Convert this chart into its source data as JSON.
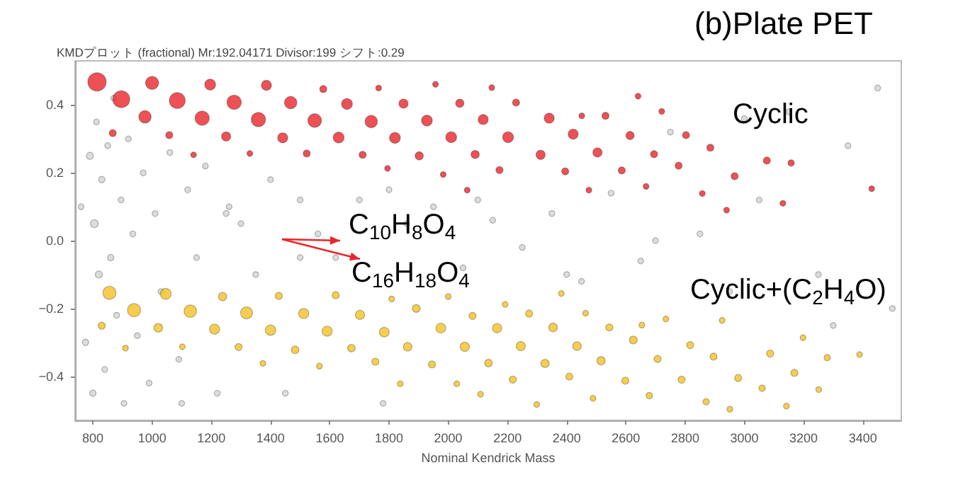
{
  "chart_data": {
    "type": "bubble",
    "title": "(b)Plate PET",
    "subtitle": "KMDプロット (fractional) Mr:192.04171 Divisor:199 シフト:0.29",
    "xlabel": "Nominal Kendrick Mass",
    "annotations": [
      "C$_{10}$H$_{8}$O$_{4}$",
      "C$_{16}$H$_{18}$O$_{4}$"
    ],
    "xlim": [
      740,
      3530
    ],
    "ylim": [
      -0.53,
      0.53
    ],
    "xticks": [
      800,
      1000,
      1200,
      1400,
      1600,
      1800,
      2000,
      2200,
      2400,
      2600,
      2800,
      3000,
      3200,
      3400
    ],
    "yticks": [
      {
        "value": -0.4,
        "label": "−0.4"
      },
      {
        "value": -0.2,
        "label": "−0.2"
      },
      {
        "value": 0,
        "label": "0.0"
      },
      {
        "value": 0.2,
        "label": "0.2"
      },
      {
        "value": 0.4,
        "label": "0.4"
      }
    ],
    "grid": false,
    "legend": false,
    "series": [
      {
        "color": "#d4d4d4",
        "x": [
          760,
          775,
          790,
          800,
          805,
          812,
          820,
          830,
          840,
          850,
          860,
          870,
          880,
          895,
          905,
          920,
          935,
          950,
          970,
          990,
          1010,
          1030,
          1060,
          1090,
          1120,
          1150,
          1180,
          1220,
          1260,
          1300,
          1350,
          1400,
          1450,
          1500,
          1560,
          1620,
          1700,
          1780,
          1860,
          1950,
          2050,
          2150,
          2250,
          2350,
          2450,
          2550,
          2650,
          2750,
          2850,
          2950,
          3050,
          3150,
          3250,
          3350,
          3450,
          3500,
          1100,
          1250,
          1500,
          1800,
          2100,
          2400,
          2700,
          3000,
          3300
        ],
        "values": [
          0.1,
          -0.3,
          0.25,
          -0.45,
          0.05,
          0.35,
          -0.1,
          0.18,
          -0.38,
          0.28,
          -0.05,
          0.42,
          -0.22,
          0.12,
          -0.48,
          0.3,
          0.02,
          -0.28,
          0.2,
          -0.42,
          0.08,
          -0.15,
          0.26,
          -0.35,
          0.15,
          -0.05,
          0.22,
          -0.45,
          0.1,
          0.05,
          -0.1,
          0.18,
          -0.45,
          0.12,
          0.02,
          -0.05,
          0.12,
          -0.48,
          0.05,
          0.1,
          -0.08,
          0.06,
          -0.02,
          0.08,
          -0.12,
          0.14,
          -0.06,
          0.32,
          0.02,
          -0.15,
          0.12,
          0.38,
          -0.1,
          0.28,
          0.45,
          -0.2,
          -0.48,
          0.08,
          -0.05,
          0.15,
          0.12,
          -0.1,
          0.0,
          0.36,
          -0.25
        ],
        "sizes": [
          0.1,
          0.12,
          0.15,
          0.12,
          0.18,
          0.1,
          0.15,
          0.12,
          0.1,
          0.1,
          0.12,
          0.1,
          0.1,
          0.1,
          0.1,
          0.1,
          0.1,
          0.1,
          0.1,
          0.1,
          0.1,
          0.1,
          0.1,
          0.1,
          0.1,
          0.1,
          0.1,
          0.1,
          0.1,
          0.1,
          0.1,
          0.1,
          0.1,
          0.1,
          0.1,
          0.1,
          0.1,
          0.1,
          0.1,
          0.1,
          0.1,
          0.1,
          0.1,
          0.1,
          0.1,
          0.1,
          0.1,
          0.1,
          0.1,
          0.1,
          0.1,
          0.1,
          0.1,
          0.1,
          0.1,
          0.1,
          0.1,
          0.1,
          0.1,
          0.1,
          0.1,
          0.1,
          0.1,
          0.1,
          0.1
        ]
      },
      {
        "name": "Cyclic",
        "color": "#e8262a",
        "x": [
          814,
          867,
          896,
          976,
          1000,
          1058,
          1085,
          1140,
          1169,
          1196,
          1250,
          1277,
          1330,
          1359,
          1386,
          1441,
          1468,
          1522,
          1549,
          1578,
          1630,
          1658,
          1711,
          1740,
          1765,
          1795,
          1820,
          1849,
          1902,
          1928,
          1957,
          1983,
          2010,
          2039,
          2064,
          2091,
          2118,
          2147,
          2173,
          2202,
          2229,
          2312,
          2341,
          2395,
          2422,
          2451,
          2475,
          2504,
          2531,
          2586,
          2614,
          2641,
          2668,
          2695,
          2721,
          2778,
          2803,
          2858,
          2885,
          2940,
          2967,
          3076,
          3130,
          3158,
          3430
        ],
        "values": [
          0.468,
          0.317,
          0.417,
          0.365,
          0.465,
          0.311,
          0.413,
          0.253,
          0.361,
          0.46,
          0.307,
          0.408,
          0.257,
          0.357,
          0.458,
          0.303,
          0.407,
          0.257,
          0.354,
          0.447,
          0.304,
          0.403,
          0.253,
          0.351,
          0.45,
          0.213,
          0.303,
          0.404,
          0.25,
          0.354,
          0.461,
          0.195,
          0.305,
          0.405,
          0.149,
          0.254,
          0.357,
          0.451,
          0.208,
          0.305,
          0.407,
          0.253,
          0.361,
          0.204,
          0.314,
          0.368,
          0.149,
          0.26,
          0.368,
          0.207,
          0.31,
          0.426,
          0.16,
          0.255,
          0.381,
          0.221,
          0.311,
          0.139,
          0.274,
          0.09,
          0.19,
          0.236,
          0.11,
          0.229,
          0.153
        ],
        "sizes": [
          1,
          0.15,
          0.85,
          0.45,
          0.5,
          0.15,
          0.75,
          0.1,
          0.6,
          0.35,
          0.25,
          0.6,
          0.1,
          0.6,
          0.3,
          0.3,
          0.45,
          0.15,
          0.55,
          0.15,
          0.35,
          0.35,
          0.15,
          0.45,
          0.1,
          0.1,
          0.35,
          0.25,
          0.2,
          0.35,
          0.1,
          0.1,
          0.35,
          0.2,
          0.1,
          0.2,
          0.3,
          0.1,
          0.15,
          0.35,
          0.15,
          0.25,
          0.3,
          0.15,
          0.3,
          0.1,
          0.1,
          0.25,
          0.15,
          0.15,
          0.2,
          0.1,
          0.1,
          0.15,
          0.1,
          0.15,
          0.15,
          0.1,
          0.15,
          0.1,
          0.15,
          0.15,
          0.1,
          0.12,
          0.1
        ]
      },
      {
        "name": "Cyclic+(C$_{2}$H$_{4}$O)",
        "color": "#f5c021",
        "x": [
          830,
          856,
          910,
          939,
          1021,
          1046,
          1102,
          1129,
          1211,
          1238,
          1292,
          1319,
          1374,
          1400,
          1428,
          1483,
          1512,
          1565,
          1591,
          1620,
          1673,
          1702,
          1754,
          1784,
          1809,
          1838,
          1863,
          1892,
          1945,
          1975,
          2000,
          2029,
          2056,
          2082,
          2109,
          2136,
          2165,
          2192,
          2218,
          2245,
          2273,
          2299,
          2327,
          2354,
          2382,
          2409,
          2435,
          2464,
          2489,
          2516,
          2544,
          2598,
          2625,
          2654,
          2679,
          2707,
          2735,
          2788,
          2817,
          2871,
          2896,
          2925,
          2951,
          2979,
          3060,
          3087,
          3142,
          3169,
          3198,
          3251,
          3280,
          3389
        ],
        "values": [
          -0.251,
          -0.154,
          -0.317,
          -0.205,
          -0.257,
          -0.157,
          -0.313,
          -0.208,
          -0.261,
          -0.165,
          -0.314,
          -0.213,
          -0.362,
          -0.264,
          -0.163,
          -0.322,
          -0.215,
          -0.37,
          -0.267,
          -0.161,
          -0.317,
          -0.219,
          -0.357,
          -0.27,
          -0.172,
          -0.422,
          -0.313,
          -0.2,
          -0.365,
          -0.258,
          -0.165,
          -0.422,
          -0.313,
          -0.222,
          -0.453,
          -0.361,
          -0.258,
          -0.188,
          -0.41,
          -0.311,
          -0.215,
          -0.483,
          -0.362,
          -0.256,
          -0.156,
          -0.401,
          -0.311,
          -0.214,
          -0.465,
          -0.354,
          -0.256,
          -0.413,
          -0.293,
          -0.249,
          -0.457,
          -0.349,
          -0.231,
          -0.41,
          -0.308,
          -0.475,
          -0.342,
          -0.235,
          -0.497,
          -0.405,
          -0.435,
          -0.333,
          -0.488,
          -0.39,
          -0.286,
          -0.439,
          -0.345,
          -0.336
        ],
        "sizes": [
          0.15,
          0.5,
          0.1,
          0.5,
          0.22,
          0.35,
          0.1,
          0.45,
          0.3,
          0.2,
          0.15,
          0.42,
          0.1,
          0.32,
          0.15,
          0.17,
          0.3,
          0.1,
          0.3,
          0.15,
          0.17,
          0.25,
          0.15,
          0.28,
          0.1,
          0.1,
          0.22,
          0.18,
          0.15,
          0.28,
          0.1,
          0.1,
          0.25,
          0.15,
          0.1,
          0.17,
          0.25,
          0.1,
          0.15,
          0.25,
          0.15,
          0.1,
          0.2,
          0.22,
          0.1,
          0.15,
          0.22,
          0.1,
          0.1,
          0.2,
          0.15,
          0.15,
          0.18,
          0.1,
          0.12,
          0.15,
          0.1,
          0.15,
          0.15,
          0.12,
          0.15,
          0.1,
          0.1,
          0.15,
          0.12,
          0.15,
          0.1,
          0.15,
          0.1,
          0.1,
          0.12,
          0.1
        ]
      }
    ]
  }
}
